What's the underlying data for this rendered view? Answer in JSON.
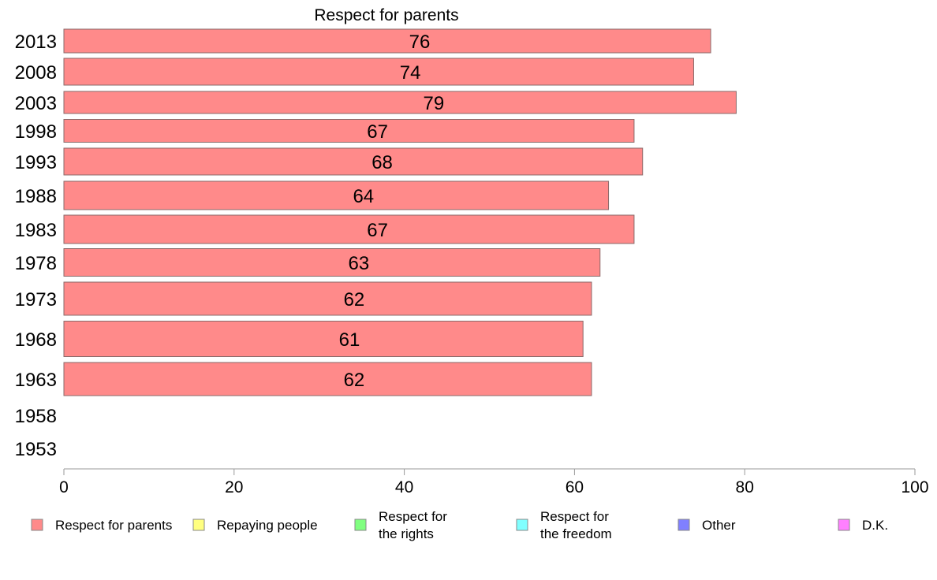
{
  "chart_data": {
    "type": "bar",
    "orientation": "horizontal",
    "title": "Respect for parents",
    "categories": [
      "2013",
      "2008",
      "2003",
      "1998",
      "1993",
      "1988",
      "1983",
      "1978",
      "1973",
      "1968",
      "1963",
      "1958",
      "1953"
    ],
    "series": [
      {
        "name": "Respect for parents",
        "color": "#ff8a8a",
        "values": [
          76,
          74,
          79,
          67,
          68,
          64,
          67,
          63,
          62,
          61,
          62,
          null,
          null
        ]
      }
    ],
    "data_labels": [
      "76",
      "74",
      "79",
      "67",
      "68",
      "64",
      "67",
      "63",
      "62",
      "61",
      "62",
      "",
      ""
    ],
    "xlim": [
      0,
      100
    ],
    "xticks": [
      "0",
      "20",
      "40",
      "60",
      "80",
      "100"
    ],
    "grid": false,
    "legend_position": "bottom",
    "legend": [
      {
        "label": "Respect for parents",
        "color": "#ff8a8a"
      },
      {
        "label": "Repaying people",
        "color": "#ffff80"
      },
      {
        "label": "Respect for\nthe rights",
        "color": "#80ff80"
      },
      {
        "label": "Respect for\nthe freedom",
        "color": "#80ffff"
      },
      {
        "label": "Other",
        "color": "#8080ff"
      },
      {
        "label": "D.K.",
        "color": "#ff80ff"
      }
    ]
  }
}
